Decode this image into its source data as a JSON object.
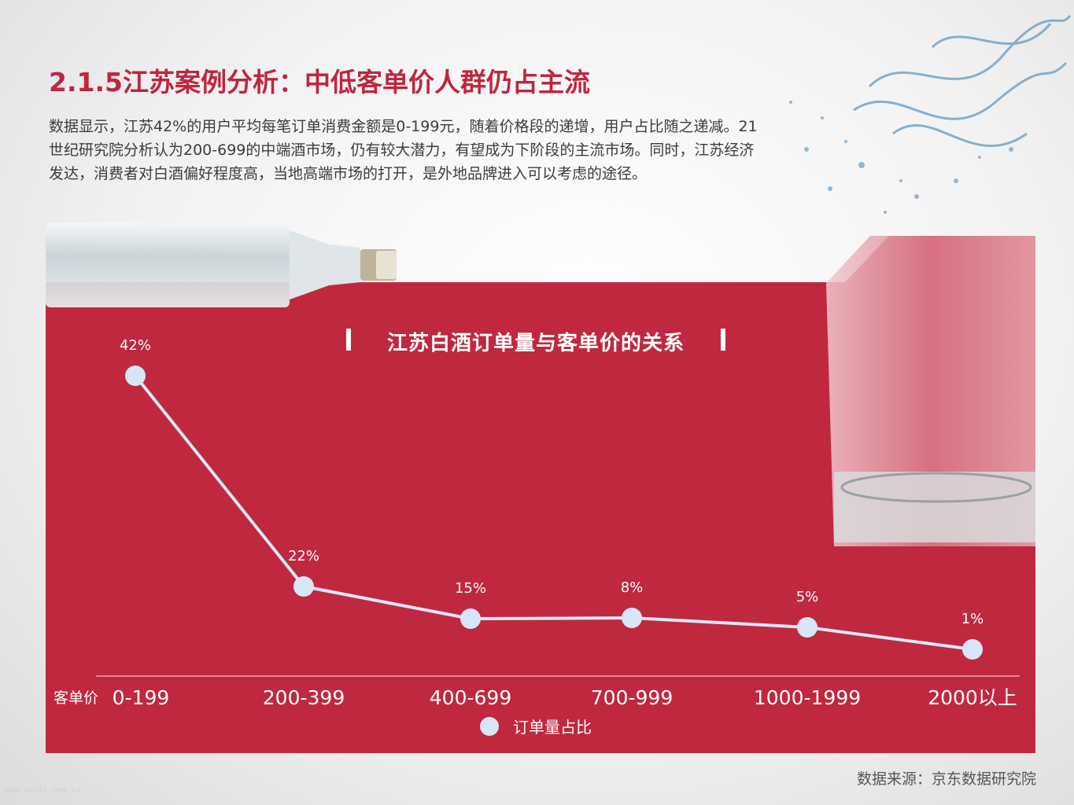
{
  "title": "2.1.5江苏案例分析：中低客单价人群仍占主流",
  "description": "数据显示，江苏42%的用户平均每笔订单消费金额是0-199元，随着价格段的递增，用户占比随之递减。21世纪研究院分析认为200-699的中端酒市场，仍有较大潜力，有望成为下阶段的主流市场。同时，江苏经济发达，消费者对白酒偏好程度高，当地高端市场的打开，是外地品牌进入可以考虑的途径。",
  "source": "数据来源：京东数据研究院",
  "watermark": "www.uqsit.com.cn",
  "colors": {
    "accent": "#c1253e",
    "panel": "#c0283f",
    "line": "#dbe7f7",
    "marker": "#d6e6f7"
  },
  "chart_data": {
    "type": "line",
    "title": "江苏白酒订单量与客单价的关系",
    "xlabel": "客单价",
    "categories": [
      "0-199",
      "200-399",
      "400-699",
      "700-999",
      "1000-1999",
      "2000以上"
    ],
    "series": [
      {
        "name": "订单量占比",
        "values": [
          42,
          22,
          15,
          8,
          5,
          1
        ],
        "labels": [
          "42%",
          "22%",
          "15%",
          "8%",
          "5%",
          "1%"
        ]
      }
    ],
    "legend": "bottom-center"
  }
}
